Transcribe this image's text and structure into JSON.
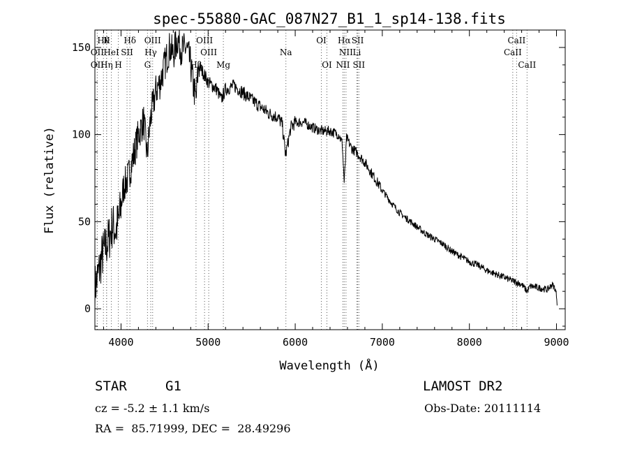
{
  "chart_data": {
    "type": "line",
    "title": "spec-55880-GAC_087N27_B1_1_sp14-138.fits",
    "xlabel": "Wavelength (Å)",
    "ylabel": "Flux (relative)",
    "xlim": [
      3700,
      9100
    ],
    "ylim": [
      -12,
      160
    ],
    "xticks": [
      4000,
      5000,
      6000,
      7000,
      8000,
      9000
    ],
    "yticks": [
      0,
      50,
      100,
      150
    ],
    "grid": false,
    "series_color": "#000000",
    "anchors": {
      "x": [
        3700,
        3740,
        3780,
        3820,
        3860,
        3900,
        3940,
        3980,
        4030,
        4080,
        4130,
        4200,
        4260,
        4300,
        4340,
        4400,
        4450,
        4500,
        4560,
        4600,
        4650,
        4700,
        4750,
        4800,
        4830,
        4862,
        4890,
        4950,
        5000,
        5100,
        5150,
        5200,
        5300,
        5400,
        5500,
        5600,
        5700,
        5800,
        5850,
        5890,
        5950,
        6000,
        6100,
        6200,
        6300,
        6400,
        6500,
        6540,
        6563,
        6590,
        6650,
        6700,
        6800,
        6900,
        7000,
        7100,
        7200,
        7300,
        7400,
        7500,
        7600,
        7700,
        7800,
        7900,
        8000,
        8100,
        8200,
        8300,
        8400,
        8500,
        8600,
        8662,
        8700,
        8800,
        8900,
        8950,
        8980,
        9000,
        9010
      ],
      "y": [
        12,
        20,
        30,
        35,
        40,
        48,
        45,
        52,
        70,
        75,
        85,
        100,
        108,
        88,
        110,
        125,
        130,
        140,
        150,
        146,
        155,
        148,
        150,
        140,
        128,
        120,
        140,
        135,
        130,
        126,
        120,
        126,
        128,
        124,
        120,
        116,
        112,
        110,
        106,
        88,
        104,
        107,
        107,
        104,
        102,
        102,
        100,
        95,
        72,
        98,
        92,
        90,
        84,
        76,
        68,
        61,
        55,
        51,
        47,
        43,
        40,
        37,
        33,
        30,
        27,
        25,
        22,
        20,
        18,
        16,
        14,
        10,
        13,
        12,
        11,
        14,
        12,
        8,
        2
      ]
    },
    "lines": [
      {
        "label": "Hθ",
        "x": 3798,
        "row": 1
      },
      {
        "label": "K",
        "x": 3834,
        "row": 1
      },
      {
        "label": "Hδ",
        "x": 4102,
        "row": 1
      },
      {
        "label": "OIII",
        "x": 4363,
        "row": 1
      },
      {
        "label": "OIII",
        "x": 4959,
        "row": 1
      },
      {
        "label": "OI",
        "x": 6300,
        "row": 1
      },
      {
        "label": "Hα",
        "x": 6563,
        "row": 1
      },
      {
        "label": "SII",
        "x": 6717,
        "row": 1
      },
      {
        "label": "CaII",
        "x": 8542,
        "row": 1
      },
      {
        "label": "OII",
        "x": 3727,
        "row": 2
      },
      {
        "label": "HeI",
        "x": 3889,
        "row": 2
      },
      {
        "label": "SII",
        "x": 4069,
        "row": 2
      },
      {
        "label": "Hγ",
        "x": 4341,
        "row": 2
      },
      {
        "label": "OIII",
        "x": 5007,
        "row": 2
      },
      {
        "label": "Na",
        "x": 5893,
        "row": 2
      },
      {
        "label": "NII",
        "x": 6583,
        "row": 2
      },
      {
        "label": "Li",
        "x": 6708,
        "row": 2
      },
      {
        "label": "CaII",
        "x": 8498,
        "row": 2
      },
      {
        "label": "OII",
        "x": 3727,
        "row": 3
      },
      {
        "label": "Hη",
        "x": 3835,
        "row": 3
      },
      {
        "label": "H",
        "x": 3969,
        "row": 3
      },
      {
        "label": "G",
        "x": 4304,
        "row": 3
      },
      {
        "label": "Hβ",
        "x": 4861,
        "row": 3
      },
      {
        "label": "Mg",
        "x": 5175,
        "row": 3
      },
      {
        "label": "OI",
        "x": 6364,
        "row": 3
      },
      {
        "label": "NII",
        "x": 6548,
        "row": 3
      },
      {
        "label": "SII",
        "x": 6731,
        "row": 3
      },
      {
        "label": "CaII",
        "x": 8662,
        "row": 3
      }
    ]
  },
  "info": {
    "object_class": "STAR",
    "subclass": "G1",
    "survey": "LAMOST DR2",
    "redshift": "cz = -5.2 ± 1.1 km/s",
    "obs_date": "Obs-Date: 20111114",
    "coords": "RA =  85.71999, DEC =  28.49296"
  }
}
